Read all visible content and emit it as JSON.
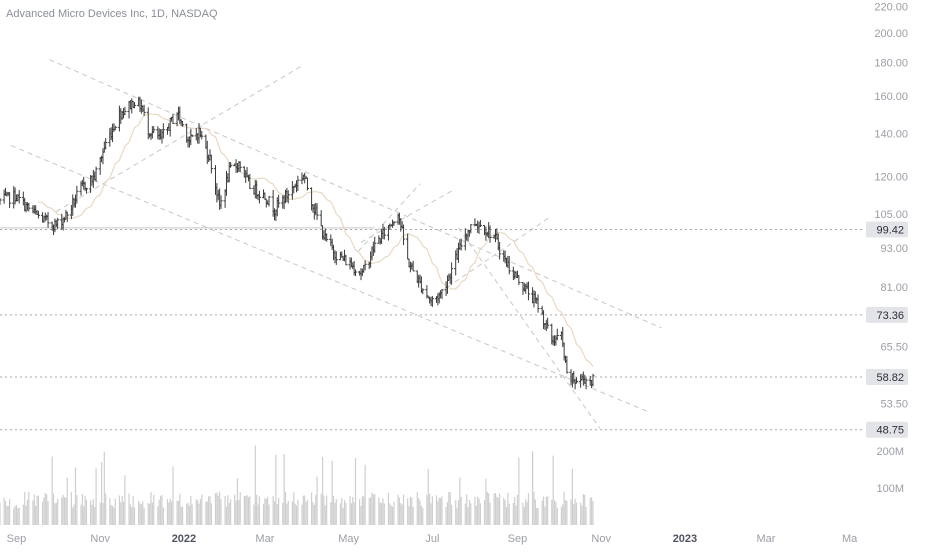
{
  "header": {
    "title": "Advanced Micro Devices Inc, 1D, NASDAQ"
  },
  "colors": {
    "candle": "#3a3a3a",
    "volume": "#cfcfcf",
    "trend": "#c8c8c8",
    "ma": "#e8d9c4",
    "axis_text": "#9b9ea6",
    "label_bg": "#e3e4e7",
    "label_text": "#2a2e39"
  },
  "chart_data": {
    "type": "ohlc-bar",
    "scale": "log",
    "ylim": [
      47,
      225
    ],
    "xlim": [
      "2021-08-20",
      "2023-05-10"
    ],
    "y_ticks": [
      "220.00",
      "200.00",
      "180.00",
      "160.00",
      "140.00",
      "120.00",
      "105.00",
      "93.00",
      "81.00",
      "65.50",
      "53.50"
    ],
    "x_ticks": [
      {
        "label": "Sep",
        "date": "2021-09-01"
      },
      {
        "label": "Nov",
        "date": "2021-11-01"
      },
      {
        "label": "2022",
        "date": "2022-01-01",
        "bold": true
      },
      {
        "label": "Mar",
        "date": "2022-03-01"
      },
      {
        "label": "May",
        "date": "2022-05-01"
      },
      {
        "label": "Jul",
        "date": "2022-07-01"
      },
      {
        "label": "Sep",
        "date": "2022-09-01"
      },
      {
        "label": "Nov",
        "date": "2022-11-01"
      },
      {
        "label": "2023",
        "date": "2023-01-01",
        "bold": true
      },
      {
        "label": "Mar",
        "date": "2023-03-01"
      },
      {
        "label": "Ma",
        "date": "2023-05-01"
      }
    ],
    "price_levels": [
      {
        "value": 99.42,
        "label": "99.42"
      },
      {
        "value": 73.36,
        "label": "73.36"
      },
      {
        "value": 58.82,
        "label": "58.82"
      },
      {
        "value": 48.75,
        "label": "48.75"
      }
    ],
    "volume_ticks": [
      {
        "value": 200,
        "label": "200M"
      },
      {
        "value": 100,
        "label": "100M"
      }
    ],
    "volume_max": 230,
    "price_path": [
      [
        "2021-08-20",
        110
      ],
      [
        "2021-08-31",
        112
      ],
      [
        "2021-09-10",
        107
      ],
      [
        "2021-09-20",
        103
      ],
      [
        "2021-09-30",
        101
      ],
      [
        "2021-10-08",
        105
      ],
      [
        "2021-10-18",
        115
      ],
      [
        "2021-10-28",
        120
      ],
      [
        "2021-11-05",
        135
      ],
      [
        "2021-11-15",
        150
      ],
      [
        "2021-11-26",
        157
      ],
      [
        "2021-12-01",
        154
      ],
      [
        "2021-12-06",
        142
      ],
      [
        "2021-12-15",
        137
      ],
      [
        "2021-12-27",
        151
      ],
      [
        "2022-01-05",
        136
      ],
      [
        "2022-01-12",
        141
      ],
      [
        "2022-01-20",
        128
      ],
      [
        "2022-01-27",
        108
      ],
      [
        "2022-02-03",
        122
      ],
      [
        "2022-02-10",
        126
      ],
      [
        "2022-02-18",
        116
      ],
      [
        "2022-03-01",
        112
      ],
      [
        "2022-03-08",
        107
      ],
      [
        "2022-03-18",
        113
      ],
      [
        "2022-03-29",
        121
      ],
      [
        "2022-04-06",
        107
      ],
      [
        "2022-04-14",
        96
      ],
      [
        "2022-04-22",
        91
      ],
      [
        "2022-05-02",
        88
      ],
      [
        "2022-05-11",
        85
      ],
      [
        "2022-05-20",
        94
      ],
      [
        "2022-05-31",
        101
      ],
      [
        "2022-06-06",
        106
      ],
      [
        "2022-06-13",
        89
      ],
      [
        "2022-06-22",
        82
      ],
      [
        "2022-06-30",
        77
      ],
      [
        "2022-07-07",
        79
      ],
      [
        "2022-07-15",
        86
      ],
      [
        "2022-07-25",
        98
      ],
      [
        "2022-08-01",
        102
      ],
      [
        "2022-08-08",
        100
      ],
      [
        "2022-08-15",
        97
      ],
      [
        "2022-08-23",
        89
      ],
      [
        "2022-08-31",
        84
      ],
      [
        "2022-09-08",
        80
      ],
      [
        "2022-09-16",
        76
      ],
      [
        "2022-09-26",
        67
      ],
      [
        "2022-10-03",
        68
      ],
      [
        "2022-10-07",
        59
      ],
      [
        "2022-10-13",
        58
      ],
      [
        "2022-10-20",
        58.5
      ],
      [
        "2022-10-26",
        58
      ]
    ],
    "trend_lines": [
      [
        [
          "2021-09-25",
          182
        ],
        [
          "2022-12-15",
          70
        ]
      ],
      [
        [
          "2021-08-28",
          134
        ],
        [
          "2022-12-05",
          52
        ]
      ],
      [
        [
          "2021-08-20",
          100
        ],
        [
          "2022-05-20",
          100
        ]
      ],
      [
        [
          "2021-09-30",
          106
        ],
        [
          "2022-03-28",
          178
        ]
      ],
      [
        [
          "2022-05-08",
          92
        ],
        [
          "2022-06-22",
          117
        ]
      ],
      [
        [
          "2022-05-10",
          95
        ],
        [
          "2022-07-15",
          114
        ]
      ],
      [
        [
          "2022-07-12",
          81
        ],
        [
          "2022-09-25",
          104
        ]
      ],
      [
        [
          "2022-07-20",
          100
        ],
        [
          "2022-10-31",
          49
        ]
      ]
    ]
  }
}
